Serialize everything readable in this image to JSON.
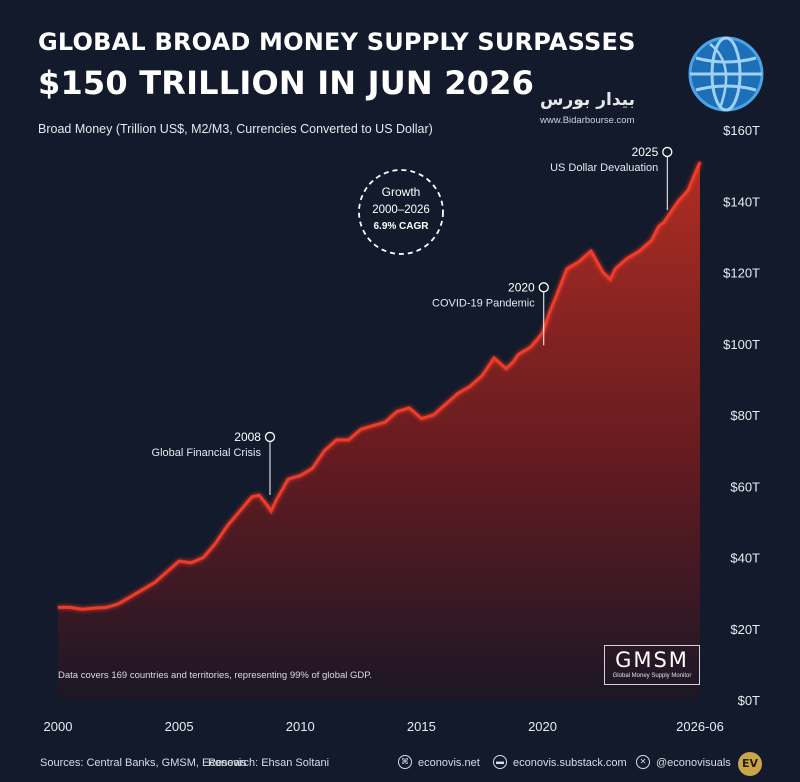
{
  "header": {
    "title_line1": "GLOBAL BROAD MONEY SUPPLY SURPASSES",
    "title_line2": "$150 TRILLION IN JUN 2026",
    "subtitle": "Broad Money (Trillion US$, M2/M3, Currencies Converted to US Dollar)"
  },
  "watermark": {
    "text": "بیدار بورس",
    "url": "www.Bidarbourse.com"
  },
  "growth_badge": {
    "line1": "Growth",
    "line2": "2000–2026",
    "line3": "6.9% CAGR"
  },
  "annotations": [
    {
      "year_label": "2008",
      "text": "Global Financial Crisis",
      "x": 2008.75,
      "y": 57
    },
    {
      "year_label": "2020",
      "text": "COVID-19 Pandemic",
      "x": 2020.05,
      "y": 99
    },
    {
      "year_label": "2025",
      "text": "US Dollar Devaluation",
      "x": 2025.15,
      "y": 137
    }
  ],
  "note": "Data covers 169 countries and territories, representing 99% of global GDP.",
  "logo": {
    "main": "GMSM",
    "sub": "Global Money Supply Monitor"
  },
  "footer": {
    "sources": "Sources: Central Banks, GMSM, Econovis",
    "research": "Research: Ehsan Soltani",
    "website": "econovis.net",
    "substack": "econovis.substack.com",
    "social": "@econovisuals",
    "badge": "EV"
  },
  "colors": {
    "background": "#121a2b",
    "line": "#e8392a",
    "fill_top": "#a52a1f",
    "fill_bottom": "#2a1420",
    "grid": "#3a4256",
    "text": "#ffffff"
  },
  "chart_data": {
    "type": "area",
    "xlabel": "",
    "ylabel": "",
    "xlim": [
      2000,
      2026.5
    ],
    "ylim": [
      0,
      160
    ],
    "x_tick_values": [
      2000,
      2005,
      2010,
      2015,
      2020,
      2026.5
    ],
    "x_tick_labels": [
      "2000",
      "2005",
      "2010",
      "2015",
      "2020",
      "2026-06"
    ],
    "y_tick_values": [
      0,
      20,
      40,
      60,
      80,
      100,
      120,
      140,
      160
    ],
    "y_tick_labels": [
      "$0T",
      "$20T",
      "$40T",
      "$60T",
      "$80T",
      "$100T",
      "$120T",
      "$140T",
      "$160T"
    ],
    "grid": false,
    "legend": "none",
    "series": [
      {
        "x": [
          2000,
          2000.5,
          2001,
          2001.5,
          2002,
          2002.5,
          2003,
          2003.5,
          2004,
          2004.5,
          2005,
          2005.5,
          2006,
          2006.5,
          2007,
          2007.5,
          2008,
          2008.3,
          2008.6,
          2008.8,
          2009,
          2009.5,
          2010,
          2010.5,
          2011,
          2011.5,
          2012,
          2012.5,
          2013,
          2013.5,
          2014,
          2014.5,
          2015,
          2015.5,
          2016,
          2016.5,
          2017,
          2017.5,
          2018,
          2018.5,
          2018.8,
          2019,
          2019.5,
          2020,
          2020.3,
          2020.6,
          2021,
          2021.5,
          2022,
          2022.5,
          2022.8,
          2023,
          2023.5,
          2024,
          2024.5,
          2024.8,
          2025,
          2025.3,
          2025.6,
          2026,
          2026.5
        ],
        "y": [
          26,
          26,
          25.5,
          25.8,
          26,
          27,
          29,
          31,
          33,
          36,
          39,
          38.5,
          40,
          44,
          49,
          53,
          57,
          57.5,
          55,
          53,
          56,
          62,
          63,
          65,
          70,
          73,
          73,
          76,
          77,
          78,
          81,
          82,
          79,
          80,
          83,
          86,
          88,
          91,
          96,
          93,
          95,
          97,
          99,
          103,
          109,
          114,
          121,
          123,
          126,
          120,
          118,
          121,
          124,
          126,
          129,
          133,
          134,
          137,
          140,
          143,
          151
        ]
      }
    ]
  }
}
